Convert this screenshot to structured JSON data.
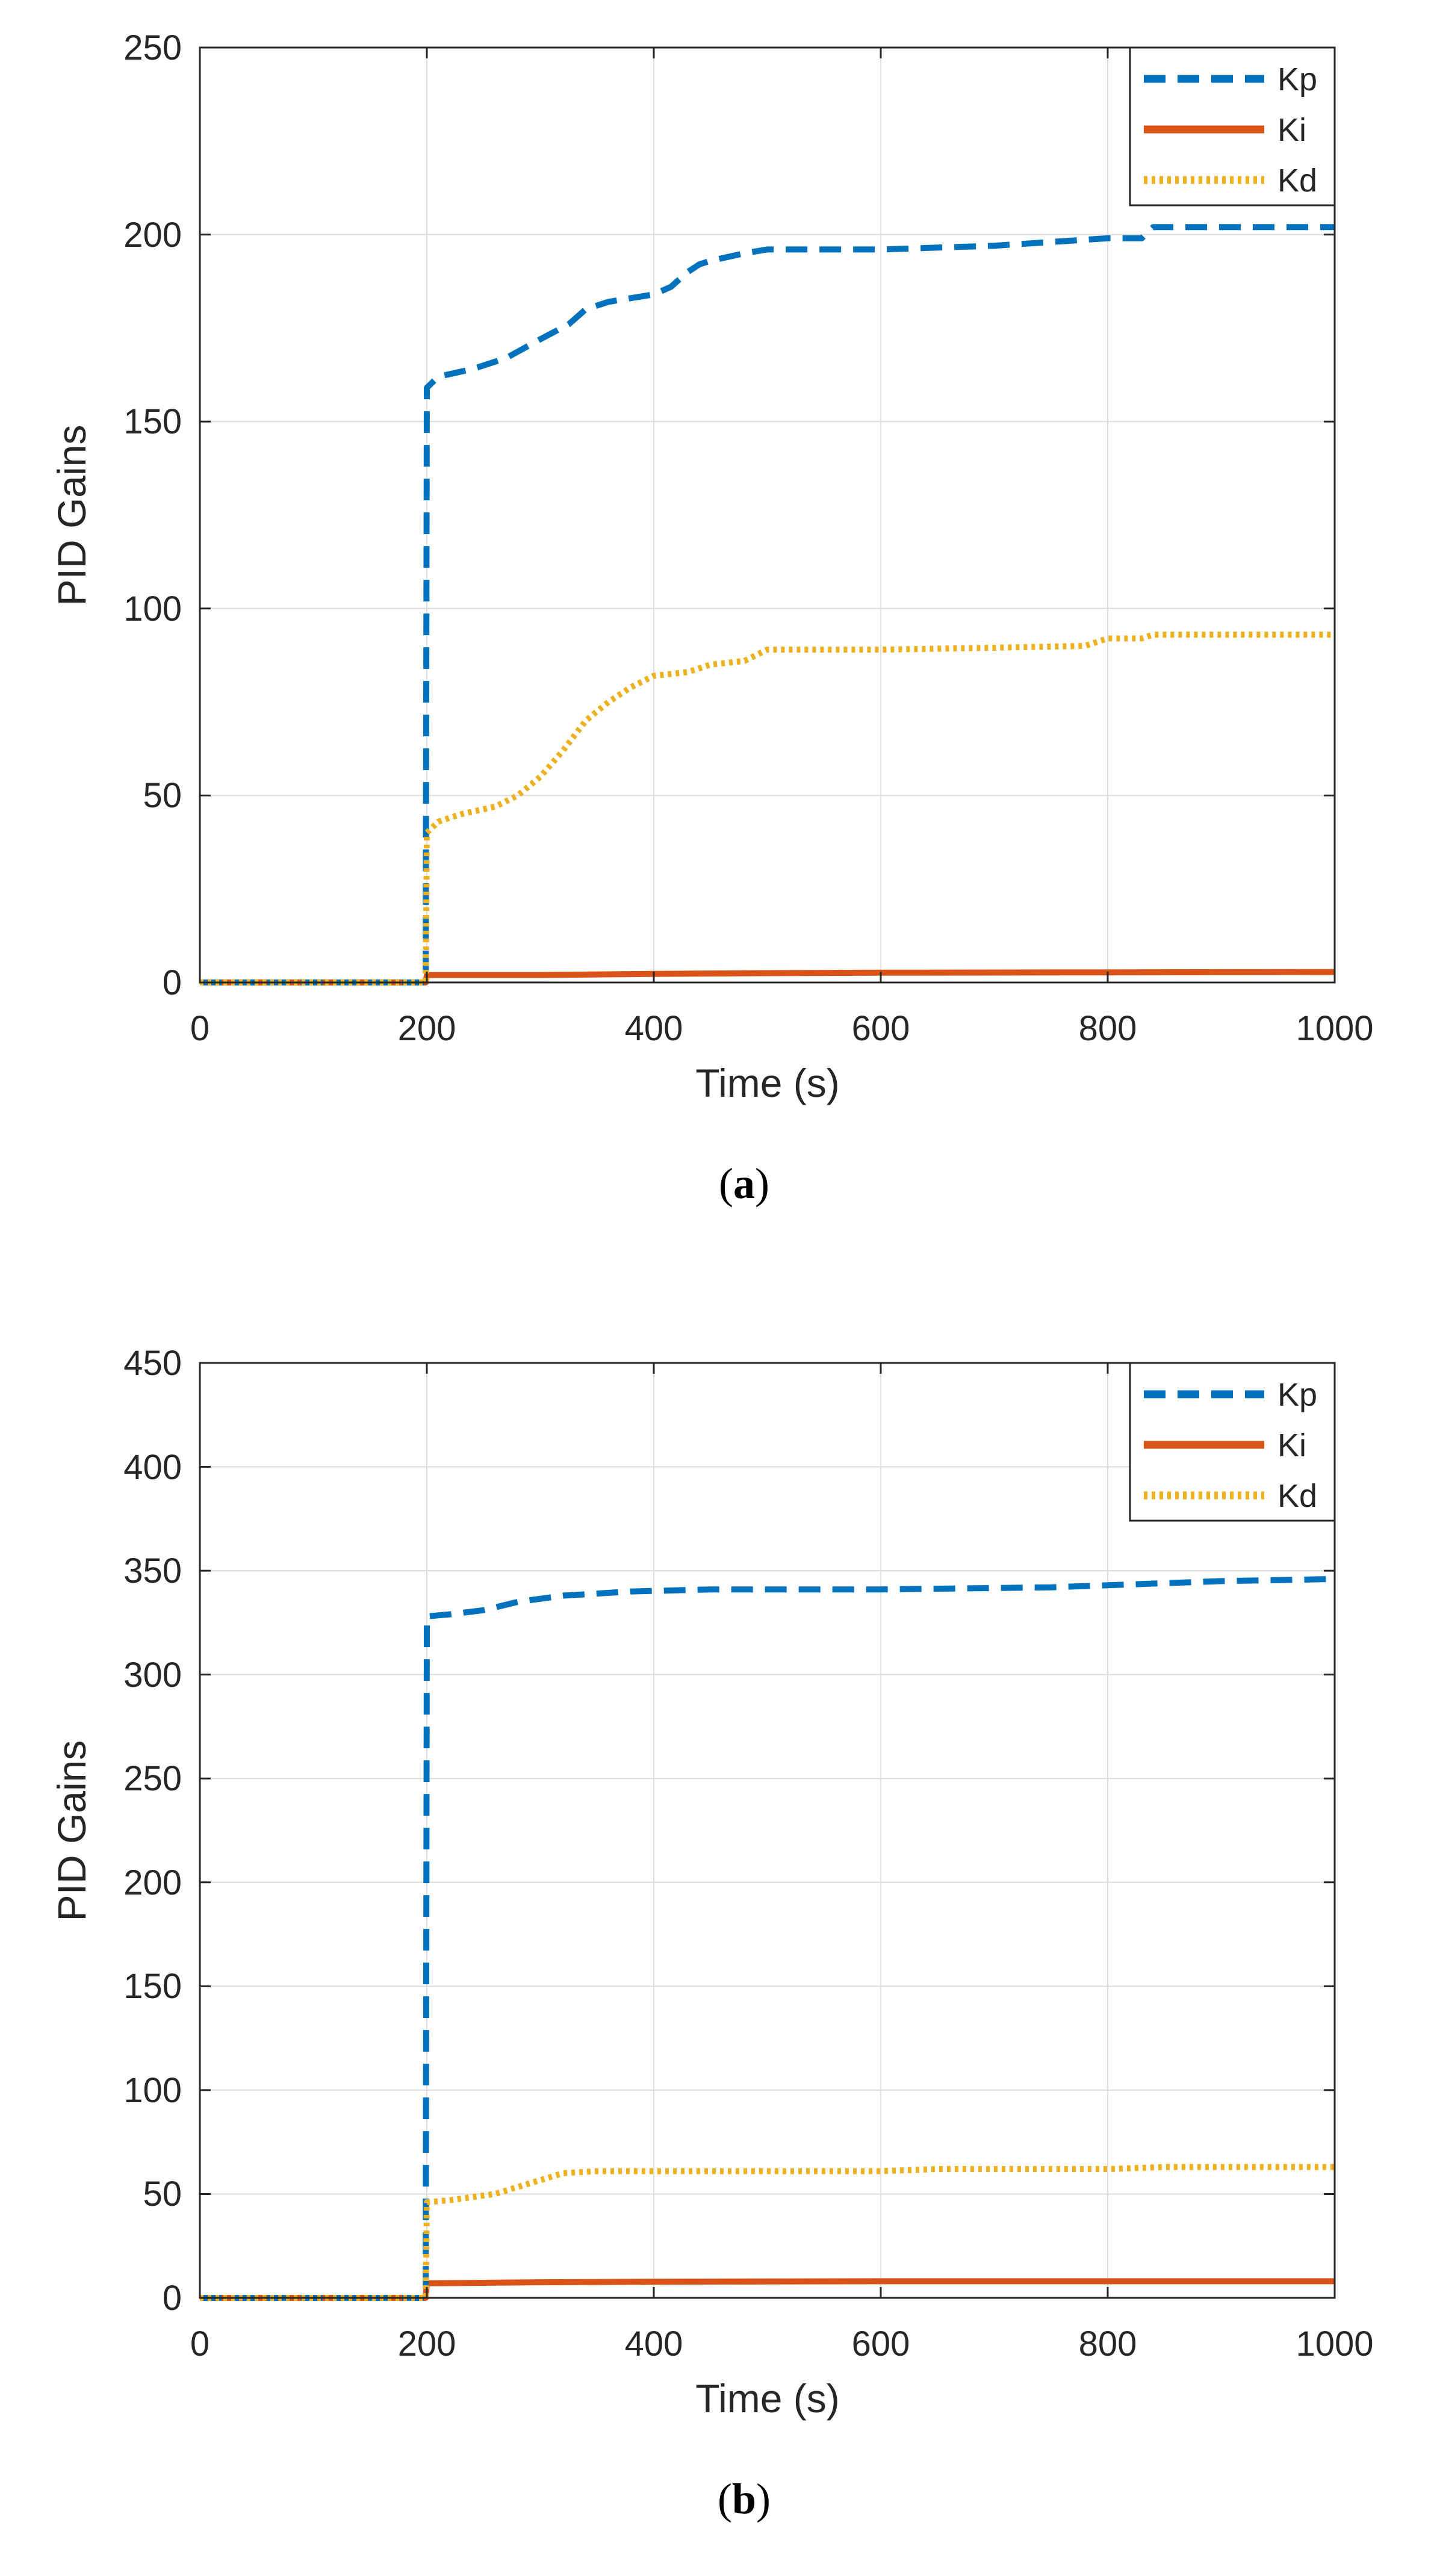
{
  "chart_data": [
    {
      "type": "line",
      "caption": {
        "open": "(",
        "letter": "a",
        "close": ")"
      },
      "title": "",
      "xlabel": "Time (s)",
      "ylabel": "PID Gains",
      "xlim": [
        0,
        1000
      ],
      "ylim": [
        0,
        250
      ],
      "xticks": [
        0,
        200,
        400,
        600,
        800,
        1000
      ],
      "yticks": [
        0,
        50,
        100,
        150,
        200,
        250
      ],
      "xtick_labels": [
        "0",
        "200",
        "400",
        "600",
        "800",
        "1000"
      ],
      "ytick_labels": [
        "0",
        "50",
        "100",
        "150",
        "200",
        "250"
      ],
      "grid": true,
      "legend_position": "top-right",
      "series": [
        {
          "name": "Kp",
          "style": "dashed",
          "color": "#0072BD",
          "x": [
            0,
            199,
            200,
            210,
            240,
            270,
            300,
            325,
            340,
            360,
            380,
            400,
            415,
            430,
            440,
            450,
            480,
            500,
            600,
            700,
            800,
            830,
            840,
            900,
            1000
          ],
          "y": [
            0,
            0,
            159,
            162,
            164,
            167,
            172,
            176,
            180,
            182,
            183,
            184,
            186,
            190,
            192,
            193,
            195,
            196,
            196,
            197,
            199,
            199,
            202,
            202,
            202
          ]
        },
        {
          "name": "Ki",
          "style": "solid",
          "color": "#D95319",
          "x": [
            0,
            199,
            200,
            300,
            400,
            500,
            600,
            800,
            1000
          ],
          "y": [
            0,
            0,
            2,
            2,
            2.3,
            2.5,
            2.6,
            2.7,
            2.8
          ]
        },
        {
          "name": "Kd",
          "style": "dotted",
          "color": "#EDB120",
          "x": [
            0,
            199,
            200,
            210,
            230,
            260,
            280,
            300,
            320,
            340,
            360,
            380,
            400,
            430,
            450,
            480,
            500,
            600,
            700,
            780,
            800,
            830,
            840,
            900,
            1000
          ],
          "y": [
            0,
            0,
            40,
            43,
            45,
            47,
            50,
            55,
            62,
            70,
            75,
            79,
            82,
            83,
            85,
            86,
            89,
            89,
            89.5,
            90,
            92,
            92,
            93,
            93,
            93
          ]
        }
      ]
    },
    {
      "type": "line",
      "caption": {
        "open": "(",
        "letter": "b",
        "close": ")"
      },
      "title": "",
      "xlabel": "Time (s)",
      "ylabel": "PID Gains",
      "xlim": [
        0,
        1000
      ],
      "ylim": [
        0,
        450
      ],
      "xticks": [
        0,
        200,
        400,
        600,
        800,
        1000
      ],
      "yticks": [
        0,
        50,
        100,
        150,
        200,
        250,
        300,
        350,
        400,
        450
      ],
      "xtick_labels": [
        "0",
        "200",
        "400",
        "600",
        "800",
        "1000"
      ],
      "ytick_labels": [
        "0",
        "50",
        "100",
        "150",
        "200",
        "250",
        "300",
        "350",
        "400",
        "450"
      ],
      "grid": true,
      "legend_position": "top-right",
      "series": [
        {
          "name": "Kp",
          "style": "dashed",
          "color": "#0072BD",
          "x": [
            0,
            199,
            200,
            220,
            250,
            280,
            320,
            380,
            450,
            600,
            750,
            800,
            850,
            900,
            1000
          ],
          "y": [
            0,
            0,
            328,
            329,
            331,
            335,
            338,
            340,
            341,
            341,
            342,
            343,
            344,
            345,
            346
          ]
        },
        {
          "name": "Ki",
          "style": "solid",
          "color": "#D95319",
          "x": [
            0,
            199,
            200,
            300,
            400,
            600,
            800,
            1000
          ],
          "y": [
            0,
            0,
            7,
            7.5,
            7.8,
            8,
            8,
            8
          ]
        },
        {
          "name": "Kd",
          "style": "dotted",
          "color": "#EDB120",
          "x": [
            0,
            199,
            200,
            220,
            260,
            290,
            320,
            350,
            400,
            500,
            600,
            650,
            700,
            800,
            850,
            1000
          ],
          "y": [
            0,
            0,
            46,
            47,
            50,
            55,
            60,
            61,
            61,
            61,
            61,
            62,
            62,
            62,
            63,
            63
          ]
        }
      ]
    }
  ]
}
